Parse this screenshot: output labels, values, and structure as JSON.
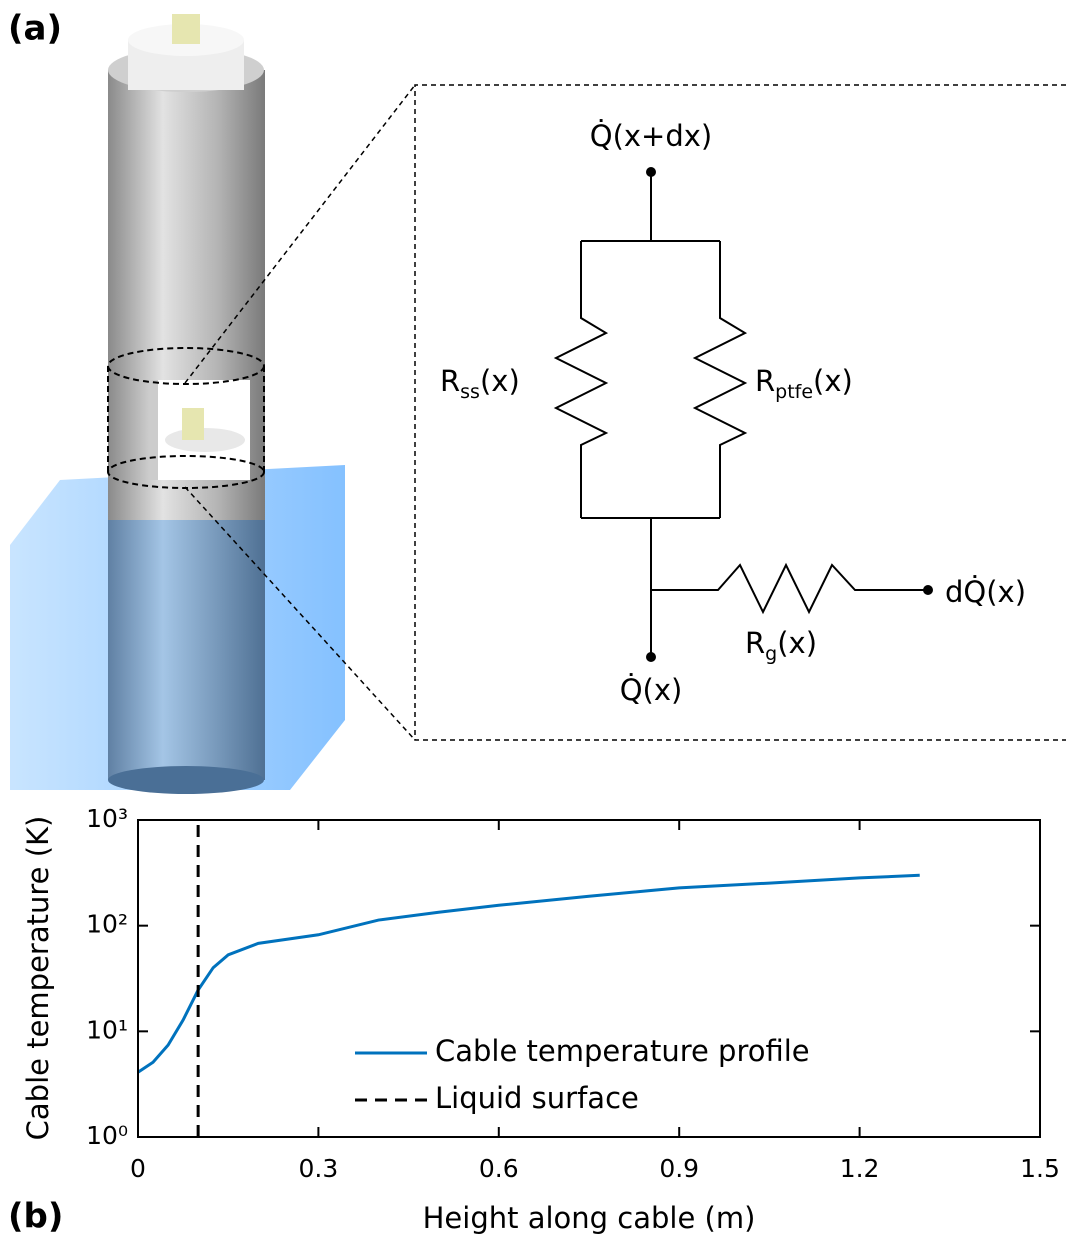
{
  "panels": [
    "(a)",
    "(b)"
  ],
  "diagram": {
    "top_flux": "Q̇(x+dx)",
    "bottom_flux": "Q̇(x)",
    "side_flux": "dQ̇(x)",
    "r_ss": {
      "main": "R",
      "sub": "ss",
      "tail": "(x)"
    },
    "r_ptfe": {
      "main": "R",
      "sub": "ptfe",
      "tail": "(x)"
    },
    "r_g": {
      "main": "R",
      "sub": "g",
      "tail": "(x)"
    }
  },
  "chart_data": {
    "type": "line",
    "xlabel": "Height along cable (m)",
    "ylabel": "Cable temperature (K)",
    "xlim": [
      0,
      1.5
    ],
    "xticks": [
      0,
      0.3,
      0.6,
      0.9,
      1.2,
      1.5
    ],
    "ylim": [
      1,
      1000
    ],
    "yscale": "log",
    "yticks": [
      {
        "value": 1,
        "label": "10⁰"
      },
      {
        "value": 10,
        "label": "10¹"
      },
      {
        "value": 100,
        "label": "10²"
      },
      {
        "value": 1000,
        "label": "10³"
      }
    ],
    "legend": "lower center",
    "series": [
      {
        "name": "Cable temperature profile",
        "color": "#0072bd",
        "dash": "solid",
        "x": [
          0,
          0.025,
          0.05,
          0.075,
          0.1,
          0.125,
          0.15,
          0.2,
          0.3,
          0.4,
          0.5,
          0.6,
          0.75,
          0.9,
          1.05,
          1.2,
          1.3
        ],
        "values": [
          4.1,
          5.1,
          7.4,
          12.8,
          24.6,
          40,
          53,
          68,
          82,
          113,
          134,
          156,
          190,
          228,
          253,
          283,
          300
        ]
      },
      {
        "name": "Liquid surface",
        "color": "#000000",
        "dash": "dashed",
        "x": [
          0.1,
          0.1
        ],
        "values": [
          1,
          1000
        ]
      }
    ]
  }
}
